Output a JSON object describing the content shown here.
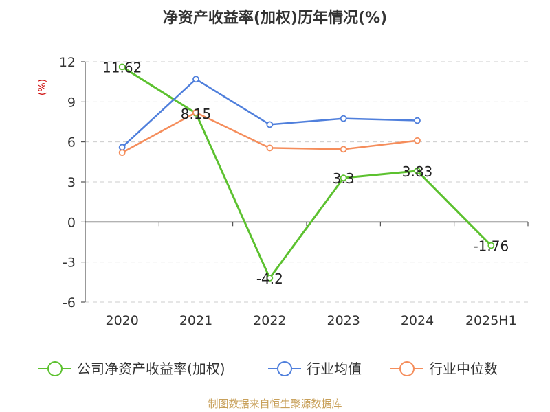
{
  "chart_data": {
    "type": "line",
    "title": "净资产收益率(加权)历年情况(%)",
    "ylabel": "(%)",
    "categories": [
      "2020",
      "2021",
      "2022",
      "2023",
      "2024",
      "2025H1"
    ],
    "ylim": [
      -6,
      12
    ],
    "yticks": [
      "12",
      "9",
      "6",
      "3",
      "0",
      "-3",
      "-6"
    ],
    "ytick_values": [
      12,
      9,
      6,
      3,
      0,
      -3,
      -6
    ],
    "grid": true,
    "legend_position": "bottom",
    "series": [
      {
        "name": "公司净资产收益率(加权)",
        "color": "#5cc12f",
        "values": [
          11.62,
          8.15,
          -4.2,
          3.3,
          3.83,
          -1.76
        ],
        "labels": [
          "11.62",
          "8.15",
          "-4.2",
          "3.3",
          "3.83",
          "-1.76"
        ]
      },
      {
        "name": "行业均值",
        "color": "#4f7fdc",
        "values": [
          5.6,
          10.7,
          7.3,
          7.75,
          7.6,
          null
        ]
      },
      {
        "name": "行业中位数",
        "color": "#f58d5b",
        "values": [
          5.2,
          8.2,
          5.55,
          5.45,
          6.1,
          null
        ]
      }
    ]
  },
  "source": "制图数据来自恒生聚源数据库"
}
